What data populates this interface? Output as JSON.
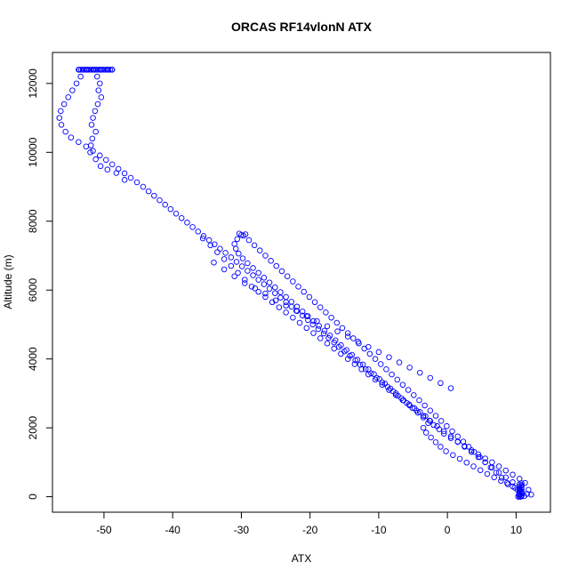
{
  "chart_data": {
    "type": "scatter",
    "title": "ORCAS RF14vlonN ATX",
    "xlabel": "ATX",
    "ylabel": "Altitude (m)",
    "xlim": [
      -57.5,
      15
    ],
    "ylim": [
      -450,
      12900
    ],
    "xticks": [
      -50,
      -40,
      -30,
      -20,
      -10,
      0,
      10
    ],
    "yticks": [
      0,
      2000,
      4000,
      6000,
      8000,
      10000,
      12000
    ],
    "grid": false,
    "legend": "none",
    "marker": "open-circle",
    "point_color": "#0000ff",
    "descent": [
      [
        10.3,
        0
      ],
      [
        10.7,
        0
      ],
      [
        11.2,
        20
      ],
      [
        10.5,
        50
      ],
      [
        11.6,
        80
      ],
      [
        12.2,
        60
      ],
      [
        11.8,
        200
      ],
      [
        11.3,
        400
      ],
      [
        10.5,
        520
      ],
      [
        9.5,
        640
      ],
      [
        8.5,
        760
      ],
      [
        7.5,
        880
      ],
      [
        6.5,
        1000
      ],
      [
        5.5,
        1110
      ],
      [
        4.5,
        1230
      ],
      [
        3.5,
        1350
      ],
      [
        2.5,
        1470
      ],
      [
        1.5,
        1590
      ],
      [
        0.5,
        1700
      ],
      [
        -0.5,
        1830
      ],
      [
        -1.2,
        1960
      ],
      [
        -2.0,
        2080
      ],
      [
        -2.6,
        2210
      ],
      [
        -3.2,
        2340
      ],
      [
        -4.0,
        2460
      ],
      [
        -4.8,
        2570
      ],
      [
        -5.6,
        2680
      ],
      [
        -6.4,
        2800
      ],
      [
        -7.2,
        2930
      ],
      [
        -7.9,
        3060
      ],
      [
        -8.7,
        3190
      ],
      [
        -9.5,
        3320
      ],
      [
        -10.3,
        3450
      ],
      [
        -11.1,
        3580
      ],
      [
        -11.9,
        3700
      ],
      [
        -12.7,
        3830
      ],
      [
        -13.4,
        3960
      ],
      [
        -14.2,
        4090
      ],
      [
        -15.0,
        4220
      ],
      [
        -15.8,
        4350
      ],
      [
        -16.5,
        4480
      ],
      [
        -17.3,
        4610
      ],
      [
        -18.0,
        4740
      ],
      [
        -18.8,
        4870
      ],
      [
        -19.6,
        5000
      ],
      [
        -20.3,
        5130
      ],
      [
        -21.1,
        5260
      ],
      [
        -21.9,
        5390
      ],
      [
        -22.7,
        5520
      ],
      [
        -23.5,
        5650
      ],
      [
        -24.3,
        5780
      ],
      [
        -25.1,
        5910
      ],
      [
        -25.9,
        6040
      ],
      [
        -26.7,
        6170
      ],
      [
        -27.5,
        6300
      ],
      [
        -28.3,
        6430
      ],
      [
        -29.1,
        6560
      ],
      [
        -29.9,
        6690
      ],
      [
        -30.7,
        6820
      ],
      [
        -31.5,
        6950
      ],
      [
        -32.3,
        7080
      ],
      [
        -33.1,
        7200
      ],
      [
        -33.9,
        7330
      ],
      [
        -34.7,
        7450
      ],
      [
        -35.5,
        7570
      ],
      [
        -36.3,
        7700
      ],
      [
        -37.1,
        7830
      ],
      [
        -37.9,
        7960
      ],
      [
        -38.7,
        8090
      ],
      [
        -39.5,
        8220
      ],
      [
        -40.3,
        8350
      ],
      [
        -41.1,
        8480
      ],
      [
        -41.9,
        8610
      ],
      [
        -42.7,
        8740
      ],
      [
        -43.5,
        8870
      ],
      [
        -44.3,
        9000
      ],
      [
        -45.2,
        9130
      ],
      [
        -46.1,
        9260
      ],
      [
        -47.0,
        9390
      ],
      [
        -47.9,
        9520
      ],
      [
        -48.8,
        9650
      ],
      [
        -49.7,
        9780
      ],
      [
        -50.6,
        9910
      ],
      [
        -51.6,
        10040
      ],
      [
        -52.6,
        10170
      ],
      [
        -53.7,
        10300
      ],
      [
        -54.8,
        10430
      ],
      [
        -55.6,
        10600
      ],
      [
        -56.2,
        10800
      ],
      [
        -56.5,
        11000
      ],
      [
        -56.3,
        11200
      ],
      [
        -55.8,
        11400
      ],
      [
        -55.2,
        11600
      ],
      [
        -54.6,
        11800
      ],
      [
        -54.0,
        12000
      ],
      [
        -53.4,
        12200
      ],
      [
        -53.7,
        12400
      ],
      [
        -52.5,
        12400
      ],
      [
        -51.5,
        12400
      ],
      [
        -50.5,
        12400
      ],
      [
        -49.5,
        12400
      ],
      [
        -48.8,
        12400
      ],
      [
        -51.0,
        12200
      ],
      [
        -50.6,
        12000
      ],
      [
        -50.8,
        11800
      ],
      [
        -50.4,
        11600
      ],
      [
        -50.9,
        11400
      ],
      [
        -51.3,
        11200
      ],
      [
        -51.6,
        11000
      ],
      [
        -51.8,
        10800
      ],
      [
        -51.2,
        10600
      ],
      [
        -51.7,
        10400
      ],
      [
        -51.9,
        10200
      ],
      [
        -52.0,
        10000
      ],
      [
        -51.2,
        9800
      ],
      [
        -50.5,
        9600
      ],
      [
        -49.5,
        9500
      ],
      [
        -48.2,
        9400
      ],
      [
        -47.0,
        9200
      ]
    ],
    "ascent": [
      [
        10.4,
        60
      ],
      [
        10.8,
        120
      ],
      [
        10.6,
        180
      ],
      [
        9.8,
        260
      ],
      [
        8.8,
        360
      ],
      [
        7.8,
        460
      ],
      [
        6.8,
        560
      ],
      [
        5.8,
        660
      ],
      [
        4.8,
        770
      ],
      [
        3.8,
        880
      ],
      [
        2.8,
        990
      ],
      [
        1.8,
        1100
      ],
      [
        0.8,
        1210
      ],
      [
        -0.2,
        1320
      ],
      [
        -1.0,
        1450
      ],
      [
        -1.7,
        1580
      ],
      [
        -2.4,
        1720
      ],
      [
        -3.1,
        1860
      ],
      [
        -3.5,
        2000
      ],
      [
        -2.8,
        2140
      ],
      [
        -3.5,
        2300
      ],
      [
        -4.3,
        2440
      ],
      [
        -5.1,
        2580
      ],
      [
        -5.9,
        2720
      ],
      [
        -6.7,
        2860
      ],
      [
        -7.5,
        3000
      ],
      [
        -8.3,
        3140
      ],
      [
        -9.1,
        3280
      ],
      [
        -9.9,
        3420
      ],
      [
        -10.7,
        3560
      ],
      [
        -11.5,
        3700
      ],
      [
        -12.3,
        3840
      ],
      [
        -13.1,
        3980
      ],
      [
        -13.9,
        4120
      ],
      [
        -14.7,
        4260
      ],
      [
        -15.5,
        4400
      ],
      [
        -16.3,
        4540
      ],
      [
        -17.1,
        4680
      ],
      [
        -17.9,
        4820
      ],
      [
        -18.7,
        4960
      ],
      [
        -19.5,
        5100
      ],
      [
        -20.3,
        5240
      ],
      [
        -21.1,
        5380
      ],
      [
        -21.9,
        5520
      ],
      [
        -22.7,
        5660
      ],
      [
        -23.5,
        5800
      ],
      [
        -24.3,
        5940
      ],
      [
        -25.1,
        6080
      ],
      [
        -25.9,
        6220
      ],
      [
        -26.7,
        6360
      ],
      [
        -27.5,
        6500
      ],
      [
        -28.3,
        6640
      ],
      [
        -29.1,
        6780
      ],
      [
        -29.8,
        6920
      ],
      [
        -30.4,
        7060
      ],
      [
        -30.8,
        7200
      ],
      [
        -31.0,
        7340
      ],
      [
        -30.6,
        7480
      ],
      [
        -30.0,
        7600
      ],
      [
        -29.4,
        7620
      ],
      [
        -30.3,
        7640
      ],
      [
        -29.7,
        7580
      ],
      [
        -28.9,
        7450
      ],
      [
        -28.1,
        7300
      ],
      [
        -27.3,
        7150
      ],
      [
        -26.5,
        7000
      ],
      [
        -25.7,
        6850
      ],
      [
        -24.9,
        6700
      ],
      [
        -24.1,
        6550
      ],
      [
        -23.3,
        6400
      ],
      [
        -22.5,
        6250
      ],
      [
        -21.7,
        6100
      ],
      [
        -20.9,
        5950
      ],
      [
        -20.1,
        5800
      ],
      [
        -19.3,
        5650
      ],
      [
        -18.5,
        5500
      ],
      [
        -17.7,
        5350
      ],
      [
        -16.9,
        5200
      ],
      [
        -16.1,
        5050
      ],
      [
        -15.3,
        4900
      ],
      [
        -14.5,
        4750
      ],
      [
        -13.7,
        4600
      ],
      [
        -12.9,
        4450
      ],
      [
        -12.1,
        4300
      ],
      [
        -11.3,
        4150
      ],
      [
        -10.5,
        4000
      ],
      [
        -9.7,
        3850
      ],
      [
        -8.9,
        3700
      ],
      [
        -8.1,
        3550
      ],
      [
        -7.3,
        3400
      ],
      [
        -6.5,
        3250
      ],
      [
        -5.7,
        3100
      ],
      [
        -4.9,
        2950
      ],
      [
        -4.1,
        2800
      ],
      [
        -3.3,
        2650
      ],
      [
        -2.5,
        2500
      ],
      [
        -1.7,
        2350
      ],
      [
        -0.9,
        2200
      ],
      [
        -0.1,
        2050
      ],
      [
        0.7,
        1900
      ],
      [
        1.5,
        1750
      ],
      [
        2.3,
        1600
      ],
      [
        3.1,
        1450
      ],
      [
        3.9,
        1300
      ],
      [
        4.7,
        1150
      ],
      [
        5.5,
        1000
      ],
      [
        6.3,
        850
      ],
      [
        7.1,
        700
      ],
      [
        7.9,
        550
      ],
      [
        8.7,
        400
      ],
      [
        9.5,
        300
      ],
      [
        10.2,
        200
      ]
    ],
    "outer": [
      [
        -35.6,
        7500
      ],
      [
        -34.5,
        7300
      ],
      [
        -33.5,
        7100
      ],
      [
        -32.5,
        6900
      ],
      [
        -31.5,
        6700
      ],
      [
        -30.5,
        6500
      ],
      [
        -29.5,
        6300
      ],
      [
        -28.5,
        6100
      ],
      [
        -27.5,
        5950
      ],
      [
        -26.5,
        5800
      ],
      [
        -25.5,
        5650
      ],
      [
        -24.5,
        5500
      ],
      [
        -23.5,
        5350
      ],
      [
        -22.5,
        5200
      ],
      [
        -21.5,
        5050
      ],
      [
        -20.5,
        4900
      ],
      [
        -19.5,
        4750
      ],
      [
        -18.5,
        4600
      ],
      [
        -17.5,
        4450
      ],
      [
        -16.5,
        4300
      ],
      [
        -15.5,
        4150
      ],
      [
        -14.5,
        4000
      ],
      [
        -13.5,
        3850
      ],
      [
        -12.5,
        3700
      ],
      [
        -11.5,
        3550
      ],
      [
        -10.5,
        3400
      ],
      [
        -9.5,
        3250
      ],
      [
        -8.5,
        3100
      ],
      [
        -7.5,
        2950
      ],
      [
        -6.5,
        2800
      ],
      [
        -5.5,
        2650
      ],
      [
        -4.5,
        2500
      ],
      [
        -3.5,
        2350
      ],
      [
        -2.5,
        2200
      ],
      [
        -1.5,
        2050
      ],
      [
        -0.5,
        1900
      ],
      [
        0.5,
        1750
      ],
      [
        1.5,
        1600
      ],
      [
        2.5,
        1450
      ],
      [
        3.5,
        1300
      ],
      [
        4.5,
        1150
      ],
      [
        5.5,
        1000
      ],
      [
        6.5,
        850
      ],
      [
        7.5,
        700
      ],
      [
        8.5,
        560
      ],
      [
        9.5,
        420
      ],
      [
        -34.0,
        6800
      ],
      [
        -32.5,
        6600
      ],
      [
        -31.0,
        6400
      ],
      [
        -29.5,
        6200
      ],
      [
        -28.0,
        6050
      ],
      [
        -26.5,
        5900
      ],
      [
        -25.0,
        5700
      ],
      [
        -23.5,
        5550
      ],
      [
        -22.0,
        5400
      ],
      [
        -20.5,
        5250
      ],
      [
        -19.0,
        5100
      ],
      [
        -17.5,
        4950
      ],
      [
        -16.0,
        4800
      ],
      [
        -14.5,
        4650
      ],
      [
        -13.0,
        4500
      ],
      [
        -11.5,
        4350
      ],
      [
        -10.0,
        4200
      ],
      [
        -8.5,
        4050
      ],
      [
        -7.0,
        3900
      ],
      [
        -5.5,
        3750
      ],
      [
        -4.0,
        3600
      ],
      [
        -2.5,
        3450
      ],
      [
        -1.0,
        3300
      ],
      [
        0.5,
        3150
      ]
    ]
  }
}
